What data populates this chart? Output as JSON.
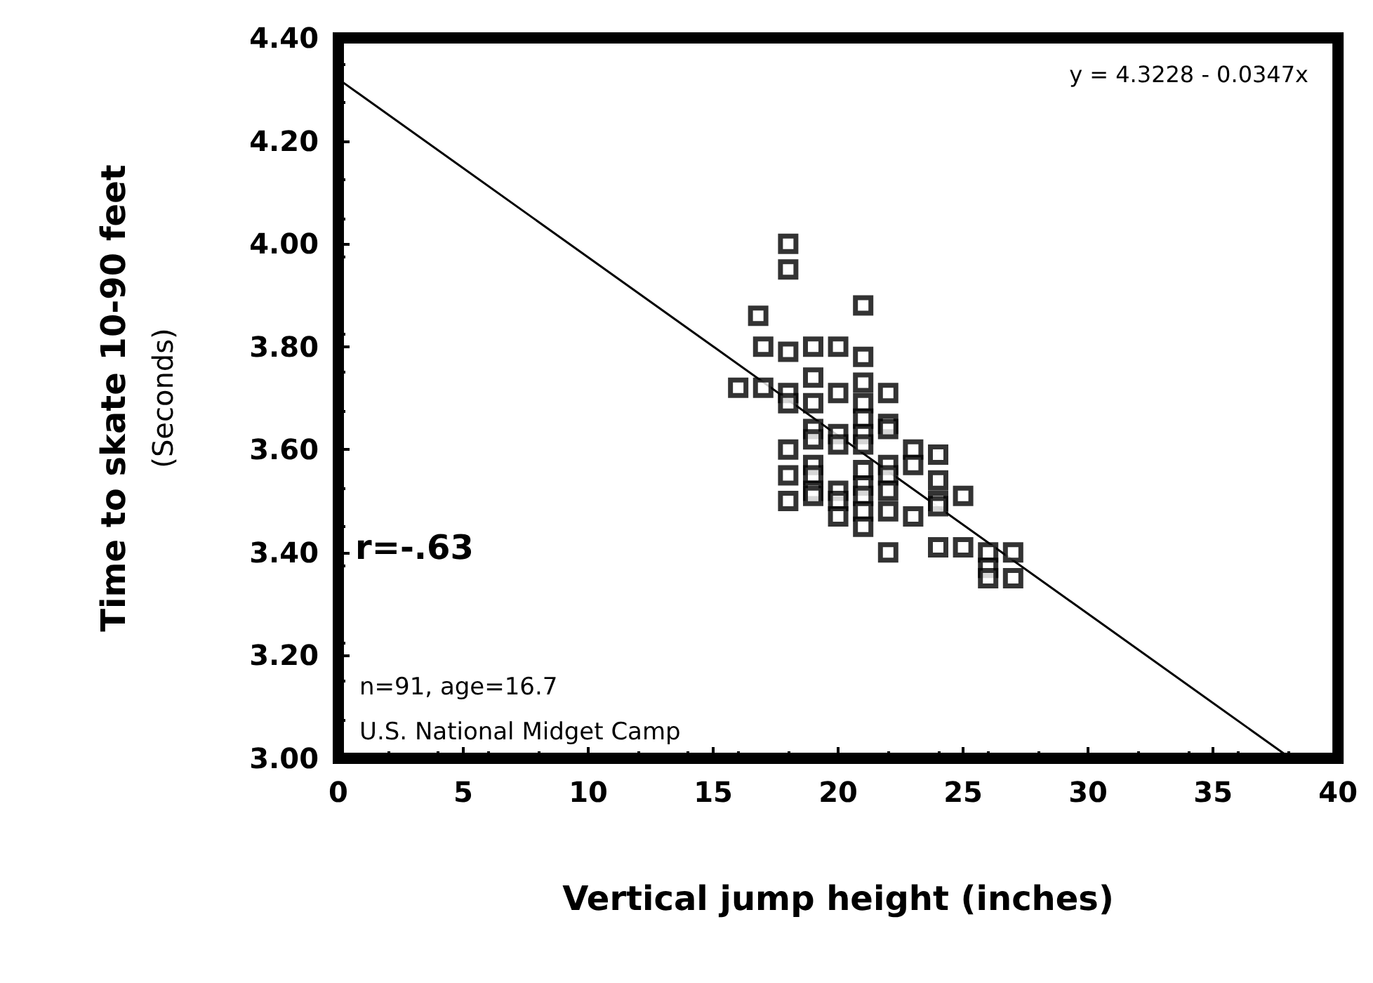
{
  "chart_data": {
    "type": "scatter",
    "xlabel": "Vertical jump height (inches)",
    "ylabel": "Time to skate 10-90 feet\n(Seconds)",
    "xlim": [
      0,
      40
    ],
    "xticks": [
      0,
      5,
      10,
      15,
      20,
      25,
      30,
      35,
      40
    ],
    "ylim": [
      3.0,
      4.4
    ],
    "yticks": [
      {
        "value": 3.0,
        "label": "3.00"
      },
      {
        "value": 3.2,
        "label": "3.20"
      },
      {
        "value": 3.4,
        "label": "3.40"
      },
      {
        "value": 3.6,
        "label": "3.60"
      },
      {
        "value": 3.8,
        "label": "3.80"
      },
      {
        "value": 4.0,
        "label": "4.00"
      },
      {
        "value": 4.2,
        "label": "4.20"
      },
      {
        "value": 4.4,
        "label": "4.40"
      }
    ],
    "grid": false,
    "series": [
      {
        "color": "#000000",
        "marker": "square",
        "x": [
          16,
          16.8,
          17,
          17,
          18,
          18,
          18,
          18,
          18,
          18,
          18,
          18,
          19,
          19,
          19,
          19,
          19,
          19,
          19,
          19,
          19,
          20,
          20,
          20,
          20,
          20,
          20,
          20,
          21,
          21,
          21,
          21,
          21,
          21,
          21,
          21,
          21,
          21,
          21,
          21,
          22,
          22,
          22,
          22,
          22,
          22,
          22,
          22,
          23,
          23,
          23,
          24,
          24,
          24,
          24,
          24,
          25,
          25,
          26,
          26,
          26,
          27,
          27
        ],
        "values": [
          3.72,
          3.86,
          3.8,
          3.72,
          4.0,
          3.95,
          3.79,
          3.71,
          3.69,
          3.6,
          3.55,
          3.5,
          3.8,
          3.74,
          3.69,
          3.64,
          3.62,
          3.57,
          3.55,
          3.52,
          3.51,
          3.8,
          3.71,
          3.63,
          3.61,
          3.52,
          3.5,
          3.47,
          3.88,
          3.78,
          3.73,
          3.69,
          3.66,
          3.63,
          3.61,
          3.56,
          3.53,
          3.51,
          3.48,
          3.45,
          3.71,
          3.65,
          3.64,
          3.57,
          3.55,
          3.52,
          3.48,
          3.4,
          3.6,
          3.57,
          3.47,
          3.59,
          3.54,
          3.5,
          3.49,
          3.41,
          3.51,
          3.41,
          3.4,
          3.37,
          3.35,
          3.4,
          3.35
        ]
      },
      {
        "type": "line",
        "color": "#000000",
        "line_style": "solid",
        "x": [
          0,
          38.1
        ],
        "values": [
          4.32,
          3.0
        ]
      }
    ],
    "annotations": [
      "y = 4.3228 - 0.0347x",
      "r=-.63",
      "n=91, age=16.7",
      "U.S. National Midget Camp"
    ]
  }
}
